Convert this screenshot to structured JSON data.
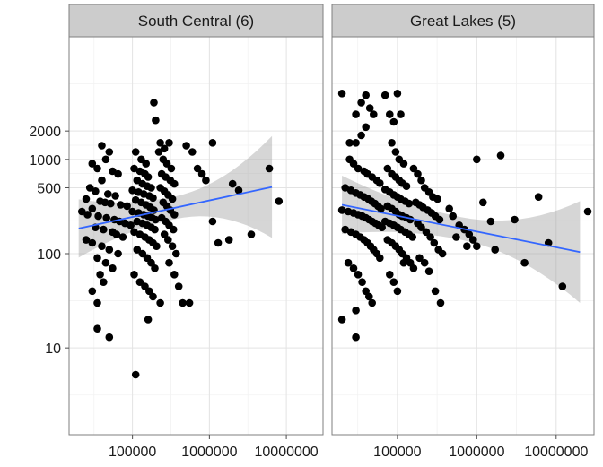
{
  "chart_data": [
    {
      "type": "scatter",
      "facet": "South Central (6)",
      "x_scale": "log10",
      "y_scale": "log10",
      "x_ticks": [
        100000,
        1000000,
        10000000
      ],
      "x_tick_labels": [
        "100000",
        "1000000",
        "10000000"
      ],
      "y_ticks": [
        10,
        100,
        500,
        1000,
        2000
      ],
      "y_tick_labels": [
        "10",
        "100",
        "500",
        "1000",
        "2000"
      ],
      "xlim": [
        15000,
        30000000
      ],
      "ylim": [
        1.2,
        20000
      ],
      "grid": true,
      "trend": {
        "x": [
          20000,
          6500000
        ],
        "y": [
          185,
          510
        ],
        "color": "#3366ff"
      },
      "points": [
        [
          40000,
          1400
        ],
        [
          50000,
          1200
        ],
        [
          45000,
          1000
        ],
        [
          30000,
          900
        ],
        [
          35000,
          800
        ],
        [
          55000,
          750
        ],
        [
          65000,
          700
        ],
        [
          40000,
          600
        ],
        [
          28000,
          500
        ],
        [
          33000,
          460
        ],
        [
          48000,
          430
        ],
        [
          60000,
          410
        ],
        [
          25000,
          380
        ],
        [
          38000,
          360
        ],
        [
          44000,
          350
        ],
        [
          52000,
          340
        ],
        [
          70000,
          330
        ],
        [
          85000,
          320
        ],
        [
          30000,
          300
        ],
        [
          22000,
          280
        ],
        [
          26000,
          260
        ],
        [
          36000,
          250
        ],
        [
          46000,
          240
        ],
        [
          58000,
          230
        ],
        [
          68000,
          220
        ],
        [
          80000,
          210
        ],
        [
          95000,
          200
        ],
        [
          33000,
          190
        ],
        [
          42000,
          180
        ],
        [
          55000,
          170
        ],
        [
          62000,
          160
        ],
        [
          75000,
          150
        ],
        [
          25000,
          140
        ],
        [
          30000,
          130
        ],
        [
          40000,
          120
        ],
        [
          50000,
          110
        ],
        [
          65000,
          100
        ],
        [
          35000,
          90
        ],
        [
          45000,
          80
        ],
        [
          55000,
          70
        ],
        [
          38000,
          60
        ],
        [
          42000,
          50
        ],
        [
          30000,
          40
        ],
        [
          35000,
          30
        ],
        [
          35000,
          16
        ],
        [
          50000,
          13
        ],
        [
          110000,
          5.2
        ],
        [
          110000,
          1200
        ],
        [
          130000,
          1000
        ],
        [
          150000,
          900
        ],
        [
          105000,
          800
        ],
        [
          125000,
          750
        ],
        [
          145000,
          700
        ],
        [
          160000,
          650
        ],
        [
          115000,
          600
        ],
        [
          135000,
          550
        ],
        [
          155000,
          520
        ],
        [
          175000,
          500
        ],
        [
          100000,
          470
        ],
        [
          120000,
          450
        ],
        [
          140000,
          430
        ],
        [
          165000,
          410
        ],
        [
          185000,
          390
        ],
        [
          110000,
          370
        ],
        [
          130000,
          350
        ],
        [
          150000,
          330
        ],
        [
          170000,
          310
        ],
        [
          190000,
          290
        ],
        [
          100000,
          280
        ],
        [
          120000,
          270
        ],
        [
          140000,
          260
        ],
        [
          160000,
          250
        ],
        [
          180000,
          240
        ],
        [
          200000,
          230
        ],
        [
          115000,
          220
        ],
        [
          135000,
          210
        ],
        [
          155000,
          200
        ],
        [
          175000,
          190
        ],
        [
          195000,
          180
        ],
        [
          105000,
          170
        ],
        [
          125000,
          160
        ],
        [
          145000,
          150
        ],
        [
          165000,
          140
        ],
        [
          185000,
          130
        ],
        [
          205000,
          120
        ],
        [
          115000,
          110
        ],
        [
          135000,
          100
        ],
        [
          155000,
          90
        ],
        [
          175000,
          80
        ],
        [
          195000,
          70
        ],
        [
          105000,
          60
        ],
        [
          125000,
          50
        ],
        [
          145000,
          45
        ],
        [
          165000,
          40
        ],
        [
          185000,
          35
        ],
        [
          160000,
          20
        ],
        [
          190000,
          4000
        ],
        [
          200000,
          2600
        ],
        [
          230000,
          1500
        ],
        [
          260000,
          1300
        ],
        [
          300000,
          1500
        ],
        [
          220000,
          1200
        ],
        [
          250000,
          1000
        ],
        [
          280000,
          900
        ],
        [
          320000,
          800
        ],
        [
          240000,
          700
        ],
        [
          270000,
          650
        ],
        [
          310000,
          600
        ],
        [
          350000,
          550
        ],
        [
          230000,
          500
        ],
        [
          260000,
          460
        ],
        [
          290000,
          420
        ],
        [
          330000,
          380
        ],
        [
          250000,
          350
        ],
        [
          280000,
          320
        ],
        [
          310000,
          290
        ],
        [
          350000,
          260
        ],
        [
          240000,
          240
        ],
        [
          270000,
          220
        ],
        [
          300000,
          200
        ],
        [
          340000,
          180
        ],
        [
          260000,
          160
        ],
        [
          290000,
          140
        ],
        [
          330000,
          120
        ],
        [
          370000,
          100
        ],
        [
          300000,
          80
        ],
        [
          350000,
          60
        ],
        [
          400000,
          45
        ],
        [
          230000,
          30
        ],
        [
          450000,
          30
        ],
        [
          550000,
          30
        ],
        [
          500000,
          1400
        ],
        [
          600000,
          1200
        ],
        [
          1100000,
          1500
        ],
        [
          700000,
          800
        ],
        [
          800000,
          700
        ],
        [
          900000,
          600
        ],
        [
          1300000,
          130
        ],
        [
          1100000,
          220
        ],
        [
          1800000,
          140
        ],
        [
          2000000,
          550
        ],
        [
          2400000,
          470
        ],
        [
          3500000,
          160
        ],
        [
          6000000,
          800
        ],
        [
          8000000,
          360
        ]
      ]
    },
    {
      "type": "scatter",
      "facet": "Great Lakes (5)",
      "x_scale": "log10",
      "y_scale": "log10",
      "x_ticks": [
        100000,
        1000000,
        10000000
      ],
      "x_tick_labels": [
        "100000",
        "1000000",
        "10000000"
      ],
      "y_ticks": [
        10,
        100,
        500,
        1000,
        2000
      ],
      "xlim": [
        15000,
        30000000
      ],
      "ylim": [
        1.2,
        20000
      ],
      "grid": true,
      "trend": {
        "x": [
          20000,
          20000000
        ],
        "y": [
          330,
          104
        ],
        "color": "#3366ff"
      },
      "points": [
        [
          20000,
          5000
        ],
        [
          25000,
          1500
        ],
        [
          35000,
          4000
        ],
        [
          30000,
          3000
        ],
        [
          40000,
          4800
        ],
        [
          45000,
          3500
        ],
        [
          50000,
          3000
        ],
        [
          40000,
          2200
        ],
        [
          35000,
          1800
        ],
        [
          30000,
          1500
        ],
        [
          25000,
          1000
        ],
        [
          28000,
          900
        ],
        [
          32000,
          800
        ],
        [
          38000,
          750
        ],
        [
          42000,
          700
        ],
        [
          48000,
          650
        ],
        [
          55000,
          600
        ],
        [
          60000,
          560
        ],
        [
          22000,
          500
        ],
        [
          26000,
          470
        ],
        [
          30000,
          440
        ],
        [
          34000,
          420
        ],
        [
          38000,
          400
        ],
        [
          43000,
          380
        ],
        [
          47000,
          360
        ],
        [
          52000,
          340
        ],
        [
          57000,
          320
        ],
        [
          62000,
          300
        ],
        [
          20000,
          290
        ],
        [
          24000,
          280
        ],
        [
          28000,
          270
        ],
        [
          32000,
          260
        ],
        [
          36000,
          250
        ],
        [
          40000,
          240
        ],
        [
          44000,
          230
        ],
        [
          48000,
          220
        ],
        [
          53000,
          210
        ],
        [
          58000,
          200
        ],
        [
          64000,
          190
        ],
        [
          22000,
          180
        ],
        [
          26000,
          170
        ],
        [
          30000,
          160
        ],
        [
          34000,
          150
        ],
        [
          38000,
          140
        ],
        [
          42000,
          130
        ],
        [
          46000,
          120
        ],
        [
          50000,
          110
        ],
        [
          55000,
          100
        ],
        [
          60000,
          90
        ],
        [
          24000,
          80
        ],
        [
          28000,
          70
        ],
        [
          32000,
          60
        ],
        [
          36000,
          50
        ],
        [
          40000,
          40
        ],
        [
          44000,
          35
        ],
        [
          48000,
          30
        ],
        [
          30000,
          25
        ],
        [
          20000,
          20
        ],
        [
          30000,
          13
        ],
        [
          70000,
          4800
        ],
        [
          80000,
          3000
        ],
        [
          90000,
          2500
        ],
        [
          100000,
          5000
        ],
        [
          110000,
          3000
        ],
        [
          85000,
          1500
        ],
        [
          95000,
          1200
        ],
        [
          105000,
          1000
        ],
        [
          120000,
          900
        ],
        [
          75000,
          800
        ],
        [
          85000,
          700
        ],
        [
          95000,
          650
        ],
        [
          105000,
          600
        ],
        [
          115000,
          560
        ],
        [
          130000,
          520
        ],
        [
          70000,
          480
        ],
        [
          80000,
          450
        ],
        [
          90000,
          420
        ],
        [
          100000,
          400
        ],
        [
          110000,
          380
        ],
        [
          125000,
          360
        ],
        [
          140000,
          340
        ],
        [
          75000,
          320
        ],
        [
          85000,
          300
        ],
        [
          95000,
          280
        ],
        [
          105000,
          260
        ],
        [
          115000,
          250
        ],
        [
          130000,
          240
        ],
        [
          145000,
          230
        ],
        [
          70000,
          220
        ],
        [
          80000,
          210
        ],
        [
          90000,
          200
        ],
        [
          100000,
          190
        ],
        [
          110000,
          180
        ],
        [
          125000,
          170
        ],
        [
          140000,
          160
        ],
        [
          155000,
          150
        ],
        [
          75000,
          140
        ],
        [
          85000,
          130
        ],
        [
          95000,
          120
        ],
        [
          105000,
          110
        ],
        [
          115000,
          100
        ],
        [
          130000,
          90
        ],
        [
          145000,
          80
        ],
        [
          160000,
          70
        ],
        [
          80000,
          60
        ],
        [
          90000,
          50
        ],
        [
          100000,
          40
        ],
        [
          120000,
          80
        ],
        [
          160000,
          800
        ],
        [
          180000,
          700
        ],
        [
          200000,
          600
        ],
        [
          220000,
          500
        ],
        [
          250000,
          450
        ],
        [
          280000,
          400
        ],
        [
          320000,
          380
        ],
        [
          170000,
          350
        ],
        [
          190000,
          330
        ],
        [
          210000,
          310
        ],
        [
          240000,
          290
        ],
        [
          270000,
          270
        ],
        [
          300000,
          250
        ],
        [
          340000,
          230
        ],
        [
          180000,
          210
        ],
        [
          200000,
          190
        ],
        [
          230000,
          170
        ],
        [
          260000,
          150
        ],
        [
          290000,
          130
        ],
        [
          330000,
          110
        ],
        [
          370000,
          100
        ],
        [
          190000,
          90
        ],
        [
          220000,
          80
        ],
        [
          250000,
          65
        ],
        [
          300000,
          40
        ],
        [
          350000,
          30
        ],
        [
          450000,
          300
        ],
        [
          500000,
          250
        ],
        [
          600000,
          200
        ],
        [
          700000,
          180
        ],
        [
          800000,
          160
        ],
        [
          900000,
          140
        ],
        [
          1000000,
          120
        ],
        [
          550000,
          150
        ],
        [
          750000,
          120
        ],
        [
          1000000,
          1000
        ],
        [
          1200000,
          350
        ],
        [
          1500000,
          220
        ],
        [
          1700000,
          110
        ],
        [
          2000000,
          1100
        ],
        [
          3000000,
          230
        ],
        [
          4000000,
          80
        ],
        [
          6000000,
          400
        ],
        [
          8000000,
          130
        ],
        [
          12000000,
          45
        ],
        [
          25000000,
          280
        ]
      ]
    }
  ]
}
